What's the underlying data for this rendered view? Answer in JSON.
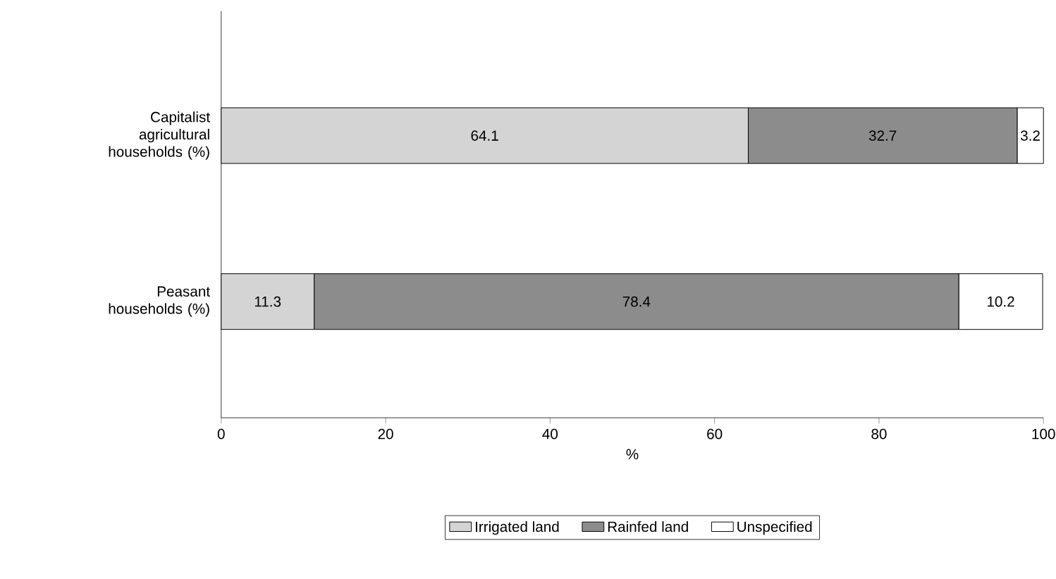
{
  "chart_data": {
    "type": "bar",
    "orientation": "horizontal",
    "stacked": true,
    "data_labels": true,
    "legend": "bottom",
    "xlabel": "%",
    "categories": [
      "Capitalist agricultural households (%)",
      "Peasant households (%)"
    ],
    "series": [
      {
        "name": "Irrigated land",
        "color": "#d4d4d4",
        "values": [
          64.1,
          11.3
        ]
      },
      {
        "name": "Rainfed land",
        "color": "#8c8c8c",
        "values": [
          32.7,
          78.4
        ]
      },
      {
        "name": "Unspecified",
        "color": "#ffffff",
        "values": [
          3.2,
          10.2
        ]
      }
    ],
    "xlim": [
      0,
      100
    ],
    "xticks": [
      0,
      20,
      40,
      60,
      80,
      100
    ]
  }
}
